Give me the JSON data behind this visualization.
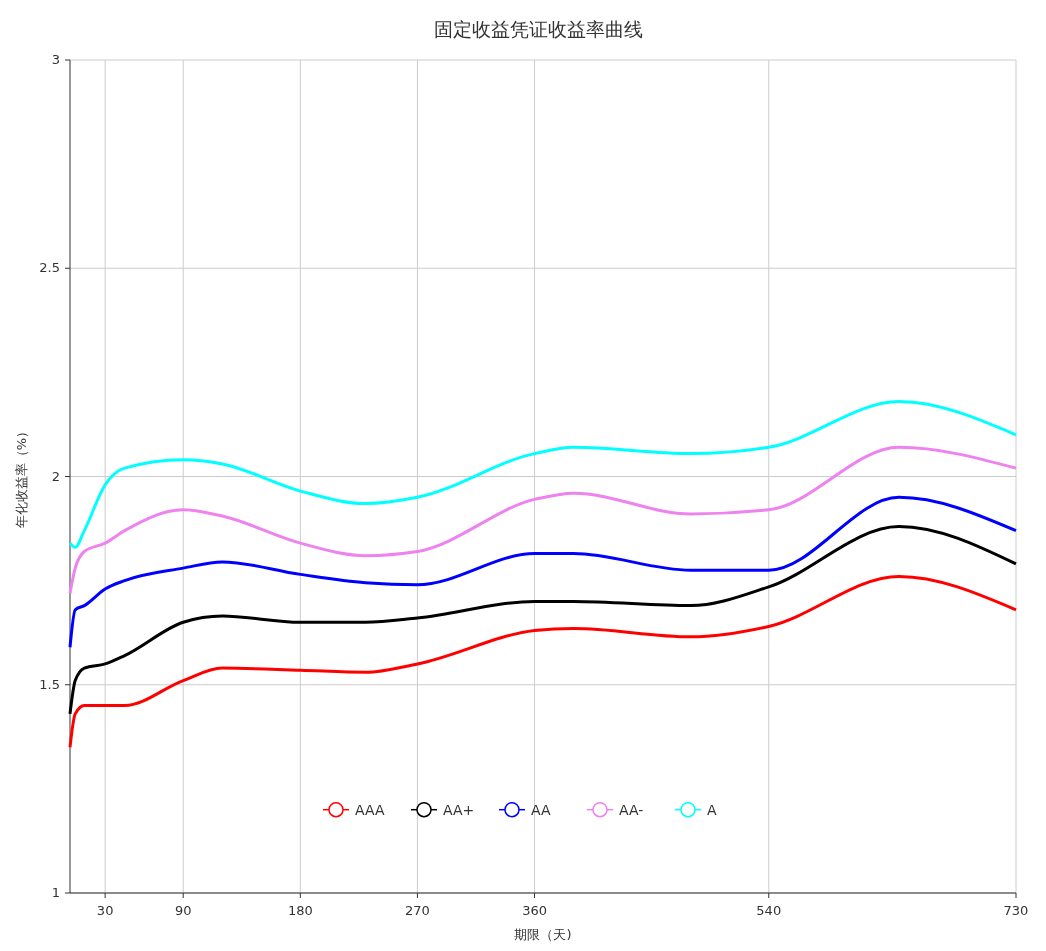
{
  "chart_data": {
    "type": "line",
    "title": "固定收益凭证收益率曲线",
    "xlabel": "期限（天)",
    "ylabel": "年化收益率（%）",
    "x": [
      3,
      7,
      14,
      30,
      45,
      90,
      120,
      180,
      230,
      270,
      360,
      390,
      480,
      540,
      640,
      730
    ],
    "xlim": [
      3,
      730
    ],
    "xticks": [
      30,
      90,
      180,
      270,
      360,
      540,
      730
    ],
    "ylim": [
      1,
      3
    ],
    "yticks": [
      1,
      1.5,
      2,
      2.5,
      3
    ],
    "grid": true,
    "legend": "bottom",
    "line_style": "solid",
    "series": [
      {
        "name": "AAA",
        "color": "#ff0000",
        "values": [
          1.35,
          1.43,
          1.45,
          1.45,
          1.45,
          1.51,
          1.54,
          1.535,
          1.53,
          1.55,
          1.63,
          1.635,
          1.615,
          1.64,
          1.76,
          1.68
        ]
      },
      {
        "name": "AA+",
        "color": "#000000",
        "values": [
          1.43,
          1.51,
          1.54,
          1.55,
          1.57,
          1.65,
          1.665,
          1.65,
          1.65,
          1.66,
          1.7,
          1.7,
          1.69,
          1.735,
          1.88,
          1.79
        ]
      },
      {
        "name": "AA",
        "color": "#0000ff",
        "values": [
          1.59,
          1.68,
          1.69,
          1.73,
          1.75,
          1.78,
          1.795,
          1.765,
          1.745,
          1.74,
          1.815,
          1.815,
          1.775,
          1.775,
          1.95,
          1.87
        ]
      },
      {
        "name": "AA-",
        "color": "#ee82ee",
        "values": [
          1.72,
          1.78,
          1.82,
          1.84,
          1.87,
          1.92,
          1.905,
          1.84,
          1.81,
          1.82,
          1.945,
          1.96,
          1.91,
          1.92,
          2.07,
          2.02
        ]
      },
      {
        "name": "A",
        "color": "#00ffff",
        "values": [
          1.84,
          1.83,
          1.87,
          1.98,
          2.02,
          2.04,
          2.03,
          1.965,
          1.935,
          1.95,
          2.055,
          2.07,
          2.055,
          2.07,
          2.18,
          2.1
        ]
      }
    ]
  }
}
